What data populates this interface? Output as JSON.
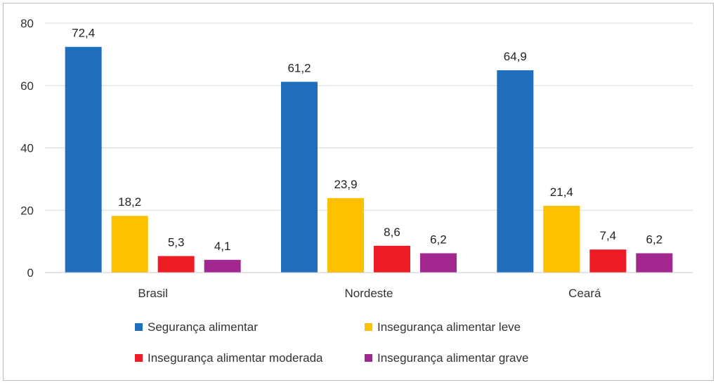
{
  "chart_data": {
    "type": "bar",
    "categories": [
      "Brasil",
      "Nordeste",
      "Ceará"
    ],
    "series": [
      {
        "name": "Segurança alimentar",
        "color": "#1f6fbd",
        "values": [
          72.4,
          61.2,
          64.9
        ],
        "labels": [
          "72,4",
          "61,2",
          "64,9"
        ]
      },
      {
        "name": "Insegurança alimentar leve",
        "color": "#ffc000",
        "values": [
          18.2,
          23.9,
          21.4
        ],
        "labels": [
          "18,2",
          "23,9",
          "21,4"
        ]
      },
      {
        "name": "Insegurança alimentar moderada",
        "color": "#ee1c25",
        "values": [
          5.3,
          8.6,
          7.4
        ],
        "labels": [
          "5,3",
          "8,6",
          "7,4"
        ]
      },
      {
        "name": "Insegurança alimentar grave",
        "color": "#a2278f",
        "values": [
          4.1,
          6.2,
          6.2
        ],
        "labels": [
          "4,1",
          "6,2",
          "6,2"
        ]
      }
    ],
    "y_ticks": [
      "0",
      "20",
      "40",
      "60",
      "80"
    ],
    "ylim": [
      0,
      80
    ],
    "grid": true,
    "legend_position": "bottom"
  }
}
